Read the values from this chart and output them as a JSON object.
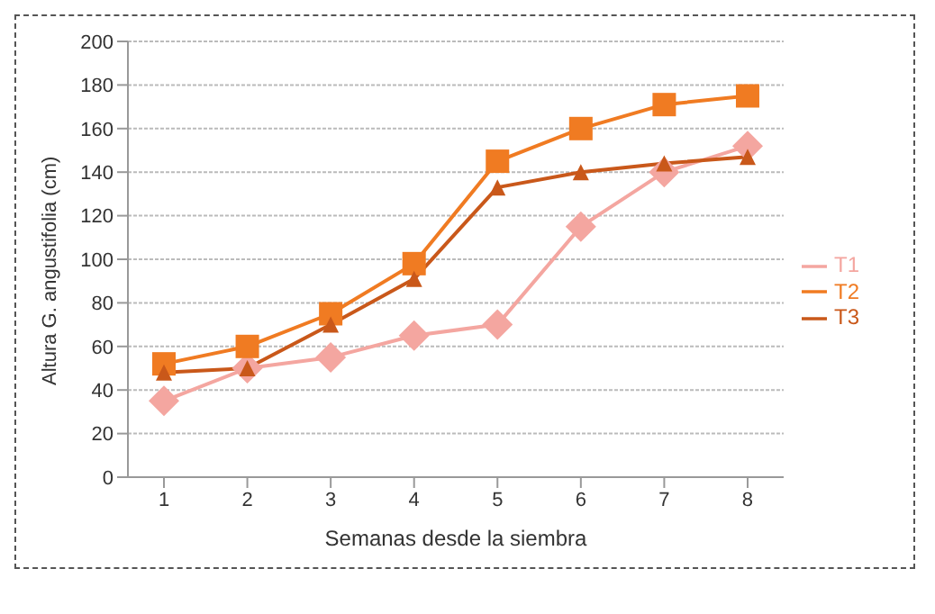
{
  "chart_data": {
    "type": "line",
    "xlabel": "Semanas desde la siembra",
    "ylabel": "Altura G. angustifolia (cm)",
    "categories": [
      "1",
      "2",
      "3",
      "4",
      "5",
      "6",
      "7",
      "8"
    ],
    "series": [
      {
        "name": "T1",
        "color": "#f4a6a0",
        "marker": "diamond",
        "values": [
          35,
          50,
          55,
          65,
          70,
          115,
          140,
          152
        ]
      },
      {
        "name": "T2",
        "color": "#f07b22",
        "marker": "square",
        "values": [
          52,
          60,
          75,
          98,
          145,
          160,
          171,
          175
        ]
      },
      {
        "name": "T3",
        "color": "#c9581a",
        "marker": "triangle",
        "values": [
          48,
          50,
          70,
          91,
          133,
          140,
          144,
          147
        ]
      }
    ],
    "ylim": [
      0,
      200
    ],
    "yticks": [
      0,
      20,
      40,
      60,
      80,
      100,
      120,
      140,
      160,
      180,
      200
    ],
    "grid": "y",
    "legend": "right"
  }
}
